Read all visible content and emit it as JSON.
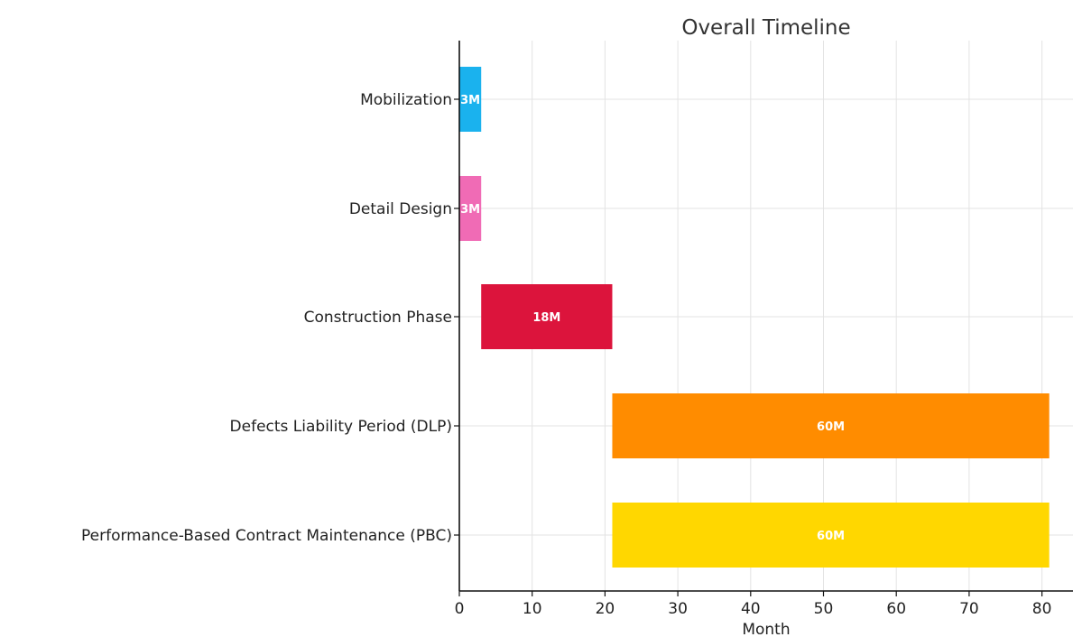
{
  "chart_data": {
    "type": "bar",
    "orientation": "horizontal",
    "title": "Overall Timeline",
    "xlabel": "Month",
    "ylabel": "",
    "xlim": [
      0,
      83
    ],
    "xticks": [
      0,
      10,
      20,
      30,
      40,
      50,
      60,
      70,
      80
    ],
    "grid": true,
    "tasks": [
      {
        "name": "Mobilization",
        "start": 0,
        "duration": 3,
        "label": "3M",
        "color": "#1ab2ee"
      },
      {
        "name": "Detail Design",
        "start": 0,
        "duration": 3,
        "label": "3M",
        "color": "#f06bb5"
      },
      {
        "name": "Construction Phase",
        "start": 3,
        "duration": 18,
        "label": "18M",
        "color": "#dc143c"
      },
      {
        "name": "Defects Liability Period (DLP)",
        "start": 21,
        "duration": 60,
        "label": "60M",
        "color": "#ff8c00"
      },
      {
        "name": "Performance-Based Contract Maintenance (PBC)",
        "start": 21,
        "duration": 60,
        "label": "60M",
        "color": "#ffd700"
      }
    ]
  }
}
